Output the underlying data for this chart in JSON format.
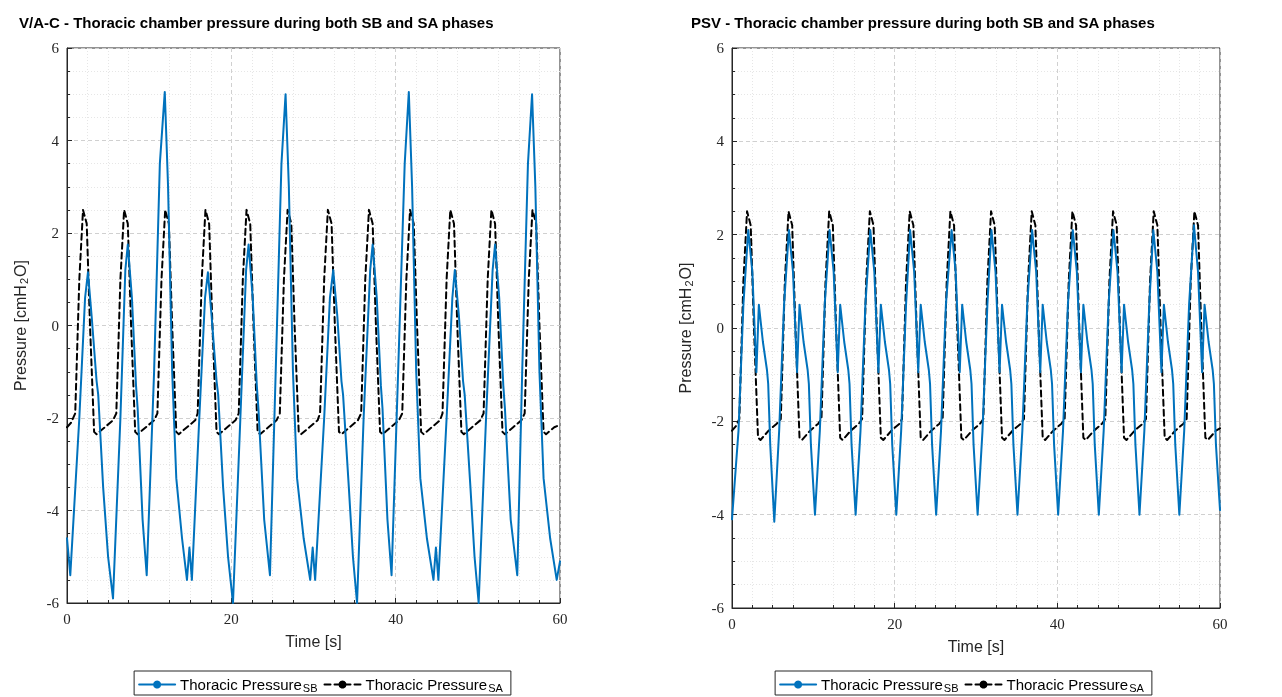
{
  "chart_data": [
    {
      "type": "line",
      "title": "V/A-C - Thoracic chamber pressure during both SB and SA phases",
      "xlabel": "Time [s]",
      "ylabel": "Pressure [cmH$_{2}$O]",
      "xlim": [
        0,
        60
      ],
      "ylim": [
        -6,
        6
      ],
      "xticks": [
        0,
        20,
        40,
        60
      ],
      "yticks": [
        -6,
        -4,
        -2,
        0,
        2,
        4,
        6
      ],
      "grid": true,
      "legend": "bottom",
      "marker": "none",
      "series": [
        {
          "name": "Thoracic Pressure$_{SB}$",
          "color": "#0072bd",
          "line_style": "solid",
          "x": [
            0,
            0.4,
            1.5,
            2.2,
            2.55,
            3.0,
            3.6,
            3.8,
            4.4,
            5.0,
            5.6,
            6.5,
            7.1,
            7.4,
            7.9,
            8.4,
            8.6,
            9.2,
            9.7,
            10.6,
            11.3,
            11.9,
            12.3,
            12.8,
            13.3,
            14.0,
            14.6,
            14.9,
            15.2,
            16.1,
            16.8,
            17.15,
            17.6,
            18.2,
            18.4,
            19.0,
            19.6,
            20.2,
            21.1,
            21.8,
            22.1,
            22.6,
            23.1,
            23.3,
            24.0,
            24.7,
            25.4,
            26.1,
            26.6,
            27.0,
            27.5,
            28.0,
            28.8,
            29.6,
            29.9,
            30.2,
            31.3,
            32.0,
            32.4,
            32.9,
            33.4,
            33.6,
            34.3,
            34.8,
            35.3,
            36.1,
            36.9,
            37.2,
            37.7,
            38.2,
            38.4,
            39.0,
            39.5,
            40.3,
            41.1,
            41.6,
            42.0,
            42.5,
            43.0,
            43.8,
            44.6,
            44.9,
            45.2,
            46.2,
            46.9,
            47.2,
            47.7,
            48.2,
            48.4,
            49.1,
            49.6,
            50.1,
            51.0,
            51.8,
            52.1,
            52.6,
            53.1,
            53.3,
            54.0,
            54.8,
            55.4,
            56.1,
            56.6,
            57.0,
            57.5,
            58.0,
            58.8,
            59.6,
            60
          ],
          "values": [
            -4.6,
            -5.4,
            -2.0,
            0.6,
            1.15,
            0.2,
            -1.2,
            -1.5,
            -3.5,
            -5.0,
            -5.9,
            -2.0,
            1.2,
            1.75,
            0.6,
            -1.3,
            -1.8,
            -4.2,
            -5.4,
            -1.0,
            3.5,
            5.05,
            3.0,
            -1.0,
            -3.3,
            -4.6,
            -5.5,
            -4.8,
            -5.5,
            -2.0,
            0.6,
            1.15,
            0.2,
            -1.2,
            -1.5,
            -3.5,
            -5.0,
            -6.0,
            -2.0,
            1.2,
            1.75,
            0.6,
            -1.3,
            -1.8,
            -4.2,
            -5.4,
            -1.0,
            3.5,
            5.0,
            3.0,
            -1.0,
            -3.3,
            -4.6,
            -5.5,
            -4.8,
            -5.5,
            -2.0,
            0.6,
            1.2,
            0.2,
            -1.2,
            -1.5,
            -3.5,
            -5.0,
            -6.0,
            -2.0,
            1.2,
            1.75,
            0.6,
            -1.3,
            -1.8,
            -4.2,
            -5.4,
            -1.0,
            3.5,
            5.05,
            3.0,
            -1.0,
            -3.3,
            -4.6,
            -5.5,
            -4.8,
            -5.5,
            -2.0,
            0.6,
            1.2,
            0.2,
            -1.2,
            -1.5,
            -3.5,
            -5.0,
            -6.0,
            -2.0,
            1.2,
            1.75,
            0.6,
            -1.3,
            -1.8,
            -4.2,
            -5.4,
            -1.0,
            3.5,
            5.0,
            3.0,
            -1.0,
            -3.3,
            -4.6,
            -5.5,
            -5.1
          ]
        },
        {
          "name": "Thoracic Pressure$_{SA}$",
          "color": "#000000",
          "line_style": "dashed",
          "x": [
            0,
            0.5,
            1.0,
            1.5,
            1.95,
            2.4,
            2.8,
            3.3,
            3.6,
            4.6,
            5.6,
            6.0,
            6.5,
            6.95,
            7.4,
            7.8,
            8.3,
            8.6,
            9.6,
            10.6,
            11.0,
            11.5,
            11.95,
            12.4,
            12.8,
            13.3,
            13.6,
            14.6,
            15.6,
            15.9,
            16.4,
            16.85,
            17.3,
            17.7,
            18.2,
            18.5,
            19.5,
            20.5,
            20.9,
            21.4,
            21.85,
            22.3,
            22.7,
            23.2,
            23.5,
            24.5,
            25.5,
            25.9,
            26.4,
            26.85,
            27.3,
            27.7,
            28.2,
            28.5,
            29.5,
            30.5,
            30.8,
            31.3,
            31.75,
            32.2,
            32.6,
            33.1,
            33.4,
            34.4,
            35.4,
            35.8,
            36.3,
            36.75,
            37.2,
            37.6,
            38.1,
            38.4,
            39.4,
            40.4,
            40.8,
            41.3,
            41.75,
            42.2,
            42.6,
            43.1,
            43.4,
            44.4,
            45.4,
            45.7,
            46.2,
            46.65,
            47.1,
            47.5,
            48.0,
            48.3,
            49.3,
            50.3,
            50.7,
            51.2,
            51.65,
            52.1,
            52.5,
            53.0,
            53.3,
            54.3,
            55.3,
            55.7,
            56.2,
            56.65,
            57.1,
            57.5,
            58.0,
            58.3,
            59.3,
            60
          ],
          "values": [
            -2.2,
            -2.1,
            -1.9,
            1.0,
            2.5,
            2.2,
            0.0,
            -2.3,
            -2.35,
            -2.2,
            -2.05,
            -1.9,
            1.0,
            2.5,
            2.2,
            0.0,
            -2.3,
            -2.35,
            -2.2,
            -2.05,
            -1.9,
            1.0,
            2.5,
            2.2,
            0.0,
            -2.3,
            -2.35,
            -2.2,
            -2.05,
            -1.9,
            1.0,
            2.5,
            2.2,
            0.0,
            -2.3,
            -2.35,
            -2.2,
            -2.05,
            -1.9,
            1.0,
            2.5,
            2.2,
            0.0,
            -2.3,
            -2.35,
            -2.2,
            -2.05,
            -1.9,
            1.0,
            2.5,
            2.2,
            0.0,
            -2.3,
            -2.35,
            -2.2,
            -2.05,
            -1.9,
            1.0,
            2.5,
            2.2,
            0.0,
            -2.3,
            -2.35,
            -2.2,
            -2.05,
            -1.9,
            1.0,
            2.5,
            2.2,
            0.0,
            -2.3,
            -2.35,
            -2.2,
            -2.05,
            -1.9,
            1.0,
            2.5,
            2.2,
            0.0,
            -2.3,
            -2.35,
            -2.2,
            -2.05,
            -1.9,
            1.0,
            2.5,
            2.2,
            0.0,
            -2.3,
            -2.35,
            -2.2,
            -2.05,
            -1.9,
            1.0,
            2.5,
            2.2,
            0.0,
            -2.3,
            -2.35,
            -2.2,
            -2.05,
            -1.9,
            1.0,
            2.5,
            2.2,
            0.0,
            -2.3,
            -2.35,
            -2.2,
            -2.15
          ]
        }
      ]
    },
    {
      "type": "line",
      "title": "PSV - Thoracic chamber pressure during both SB and SA phases",
      "xlabel": "Time [s]",
      "ylabel": "Pressure [cmH$_{2}$O]",
      "xlim": [
        0,
        60
      ],
      "ylim": [
        -6,
        6
      ],
      "xticks": [
        0,
        20,
        40,
        60
      ],
      "yticks": [
        -6,
        -4,
        -2,
        0,
        2,
        4,
        6
      ],
      "grid": true,
      "legend": "bottom",
      "marker": "none",
      "series": [
        {
          "name": "Thoracic Pressure$_{SB}$",
          "color": "#0072bd",
          "line_style": "solid",
          "x": [
            0,
            0.8,
            1.4,
            2.0,
            2.5,
            3.0,
            3.3,
            3.8,
            4.3,
            4.45,
            4.7,
            5.2,
            5.8,
            6.4,
            7.0,
            7.5,
            8.0,
            8.3,
            8.8,
            9.3,
            9.45,
            9.7,
            10.2,
            10.8,
            11.4,
            12.0,
            12.5,
            13.0,
            13.3,
            13.8,
            14.3,
            14.45,
            14.7,
            15.2,
            15.8,
            16.4,
            17.0,
            17.5,
            18.0,
            18.3,
            18.8,
            19.3,
            19.45,
            19.7,
            20.2,
            20.8,
            21.4,
            21.9,
            22.4,
            22.9,
            23.2,
            23.7,
            24.2,
            24.35,
            24.6,
            25.1,
            25.7,
            26.3,
            27.0,
            27.5,
            28.0,
            28.3,
            28.8,
            29.3,
            29.45,
            29.7,
            30.2,
            30.8,
            31.4,
            31.9,
            32.4,
            32.9,
            33.2,
            33.7,
            34.2,
            34.35,
            34.6,
            35.1,
            35.7,
            36.3,
            36.9,
            37.4,
            37.9,
            38.2,
            38.7,
            39.2,
            39.35,
            39.6,
            40.1,
            40.7,
            41.3,
            41.9,
            42.4,
            42.9,
            43.2,
            43.7,
            44.2,
            44.35,
            44.6,
            45.1,
            45.7,
            46.3,
            46.9,
            47.4,
            47.9,
            48.2,
            48.7,
            49.2,
            49.35,
            49.6,
            50.1,
            50.7,
            51.3,
            51.8,
            52.3,
            52.8,
            53.1,
            53.6,
            54.1,
            54.25,
            54.5,
            55.0,
            55.6,
            56.2,
            56.8,
            57.3,
            57.8,
            58.1,
            58.6,
            59.1,
            59.25,
            59.5,
            60
          ],
          "values": [
            -4.1,
            -2.2,
            0.5,
            2.1,
            1.2,
            -0.95,
            0.5,
            -0.3,
            -0.9,
            -1.2,
            -2.5,
            -4.15,
            -2.2,
            0.5,
            2.1,
            1.2,
            -0.95,
            0.5,
            -0.3,
            -0.9,
            -1.2,
            -2.5,
            -4.0,
            -2.2,
            0.5,
            2.1,
            1.2,
            -0.95,
            0.5,
            -0.3,
            -0.9,
            -1.2,
            -2.5,
            -4.0,
            -2.2,
            0.5,
            2.1,
            1.2,
            -0.95,
            0.5,
            -0.3,
            -0.9,
            -1.2,
            -2.5,
            -4.0,
            -2.2,
            0.5,
            2.1,
            1.2,
            -0.95,
            0.5,
            -0.3,
            -0.9,
            -1.2,
            -2.5,
            -4.0,
            -2.2,
            0.5,
            2.1,
            1.2,
            -0.95,
            0.5,
            -0.3,
            -0.9,
            -1.2,
            -2.5,
            -4.0,
            -2.2,
            0.5,
            2.1,
            1.2,
            -0.95,
            0.5,
            -0.3,
            -0.9,
            -1.2,
            -2.5,
            -4.0,
            -2.2,
            0.5,
            2.1,
            1.2,
            -0.95,
            0.5,
            -0.3,
            -0.9,
            -1.2,
            -2.5,
            -4.0,
            -2.2,
            0.5,
            2.1,
            1.2,
            -0.95,
            0.5,
            -0.3,
            -0.9,
            -1.2,
            -2.5,
            -4.0,
            -2.2,
            0.5,
            2.1,
            1.2,
            -0.95,
            0.5,
            -0.3,
            -0.9,
            -1.2,
            -2.5,
            -4.0,
            -2.2,
            0.5,
            2.1,
            1.2,
            -0.95,
            0.5,
            -0.3,
            -0.9,
            -1.2,
            -2.5,
            -4.0,
            -2.2,
            0.5,
            2.2,
            1.2,
            -0.95,
            0.5,
            -0.3,
            -0.9,
            -1.2,
            -2.5,
            -3.9
          ]
        },
        {
          "name": "Thoracic Pressure$_{SA}$",
          "color": "#000000",
          "line_style": "dashed",
          "x": [
            0,
            0.5,
            0.9,
            1.4,
            1.85,
            2.3,
            2.7,
            3.2,
            3.5,
            4.5,
            5.5,
            6.0,
            6.5,
            6.95,
            7.4,
            7.8,
            8.3,
            8.6,
            9.6,
            10.6,
            11.0,
            11.5,
            11.95,
            12.4,
            12.8,
            13.3,
            13.6,
            14.6,
            15.6,
            16.0,
            16.5,
            16.95,
            17.4,
            17.8,
            18.3,
            18.6,
            19.6,
            20.6,
            20.9,
            21.4,
            21.85,
            22.3,
            22.7,
            23.2,
            23.5,
            24.5,
            25.5,
            25.9,
            26.4,
            26.85,
            27.3,
            27.7,
            28.2,
            28.5,
            29.5,
            30.5,
            30.9,
            31.4,
            31.85,
            32.3,
            32.7,
            33.2,
            33.5,
            34.5,
            35.5,
            35.9,
            36.4,
            36.85,
            37.3,
            37.7,
            38.2,
            38.5,
            39.5,
            40.5,
            40.9,
            41.4,
            41.85,
            42.3,
            42.7,
            43.2,
            43.5,
            44.5,
            45.5,
            45.9,
            46.4,
            46.85,
            47.3,
            47.7,
            48.2,
            48.5,
            49.5,
            50.5,
            50.9,
            51.4,
            51.85,
            52.3,
            52.7,
            53.2,
            53.5,
            54.5,
            55.5,
            55.9,
            56.4,
            56.85,
            57.3,
            57.7,
            58.2,
            58.5,
            59.5,
            60
          ],
          "values": [
            -2.2,
            -2.1,
            -1.95,
            1.0,
            2.5,
            2.2,
            0.0,
            -2.35,
            -2.4,
            -2.2,
            -2.05,
            -1.95,
            1.0,
            2.5,
            2.2,
            0.0,
            -2.35,
            -2.4,
            -2.2,
            -2.05,
            -1.95,
            1.0,
            2.5,
            2.2,
            0.0,
            -2.35,
            -2.4,
            -2.2,
            -2.05,
            -1.95,
            1.0,
            2.5,
            2.2,
            0.0,
            -2.35,
            -2.4,
            -2.2,
            -2.05,
            -1.95,
            1.0,
            2.5,
            2.2,
            0.0,
            -2.35,
            -2.4,
            -2.2,
            -2.05,
            -1.95,
            1.0,
            2.5,
            2.2,
            0.0,
            -2.35,
            -2.4,
            -2.2,
            -2.05,
            -1.95,
            1.0,
            2.5,
            2.2,
            0.0,
            -2.35,
            -2.4,
            -2.2,
            -2.05,
            -1.95,
            1.0,
            2.5,
            2.2,
            0.0,
            -2.35,
            -2.4,
            -2.2,
            -2.05,
            -1.95,
            1.0,
            2.5,
            2.2,
            0.0,
            -2.35,
            -2.4,
            -2.2,
            -2.05,
            -1.95,
            1.0,
            2.5,
            2.2,
            0.0,
            -2.35,
            -2.4,
            -2.2,
            -2.05,
            -1.95,
            1.0,
            2.5,
            2.2,
            0.0,
            -2.35,
            -2.4,
            -2.2,
            -2.05,
            -1.95,
            1.0,
            2.5,
            2.2,
            0.0,
            -2.35,
            -2.4,
            -2.2,
            -2.15
          ]
        }
      ]
    }
  ]
}
